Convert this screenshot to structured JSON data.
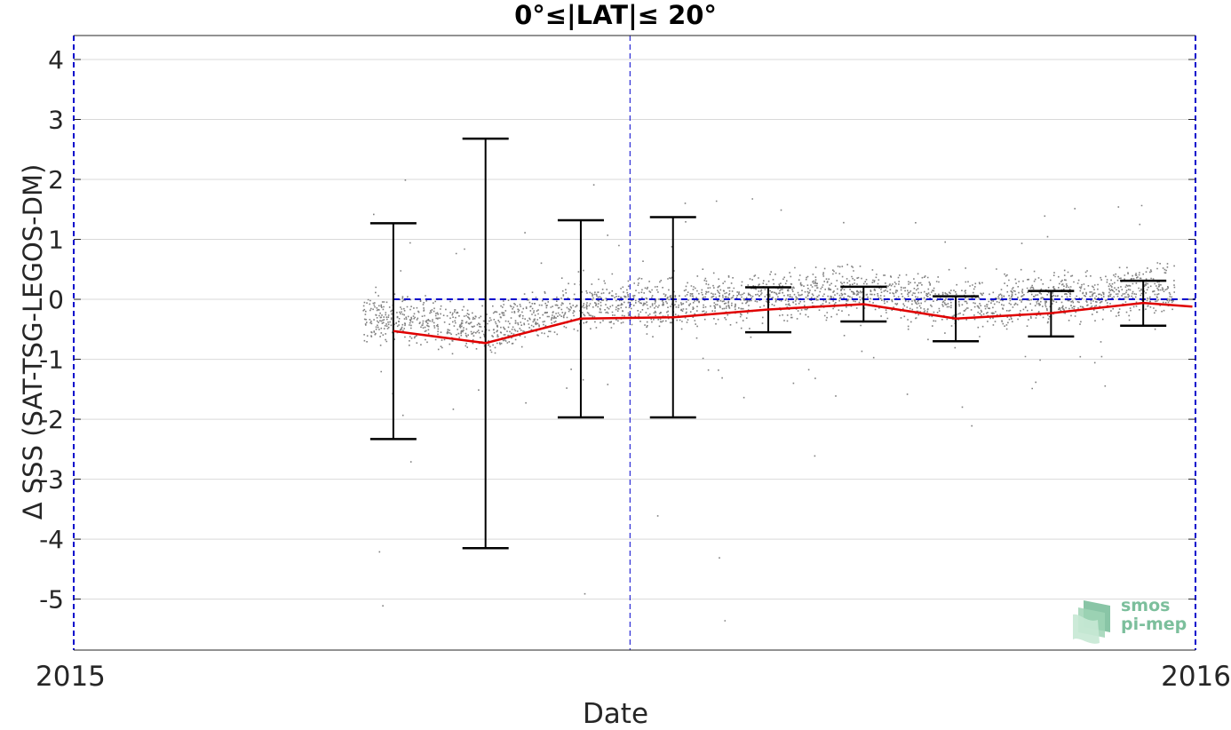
{
  "chart_data": {
    "type": "scatter",
    "title": "0°≤|LAT|≤ 20°",
    "xlabel": "Date",
    "ylabel": "Δ SSS (SAT-TSG-LEGOS-DM)",
    "xlim": [
      "2015-01-01",
      "2016-01-01"
    ],
    "ylim": [
      -5.85,
      4.4
    ],
    "x_ticks": [
      "2015",
      "2016"
    ],
    "y_ticks": [
      4,
      3,
      2,
      1,
      0,
      -1,
      -2,
      -3,
      -4,
      -5
    ],
    "grid": "horizontal",
    "reference_line_y": 0,
    "vertical_marker_x": "2015-07-01",
    "colors": {
      "points": "#808080",
      "mean_line": "#e00000",
      "error_bars": "#000000",
      "reference": "#0000cc",
      "grid": "#d9d9d9"
    },
    "series": [
      {
        "type": "line_with_errorbars",
        "x": [
          "2015-04-15",
          "2015-05-15",
          "2015-06-15",
          "2015-07-15",
          "2015-08-15",
          "2015-09-15",
          "2015-10-15",
          "2015-11-15",
          "2015-12-15",
          "2015-12-31"
        ],
        "y": [
          -0.53,
          -0.73,
          -0.32,
          -0.3,
          -0.17,
          -0.08,
          -0.32,
          -0.23,
          -0.06,
          -0.12
        ],
        "err_low": [
          -2.33,
          -4.15,
          -1.97,
          -1.97,
          -0.55,
          -0.37,
          -0.7,
          -0.62,
          -0.44,
          null
        ],
        "err_high": [
          1.27,
          2.68,
          1.32,
          1.37,
          0.2,
          0.21,
          0.05,
          0.14,
          0.31,
          null
        ]
      },
      {
        "type": "scatter_cluster",
        "description": "dense cloud of daily collocation differences",
        "x_range": [
          "2015-04-05",
          "2015-12-25"
        ],
        "typical_y_range": [
          -1.2,
          0.6
        ],
        "outliers_y_min": -5.35,
        "outliers_y_max": 2.02
      }
    ]
  },
  "logo": {
    "line1": "smos",
    "line2": "pi-mep"
  }
}
